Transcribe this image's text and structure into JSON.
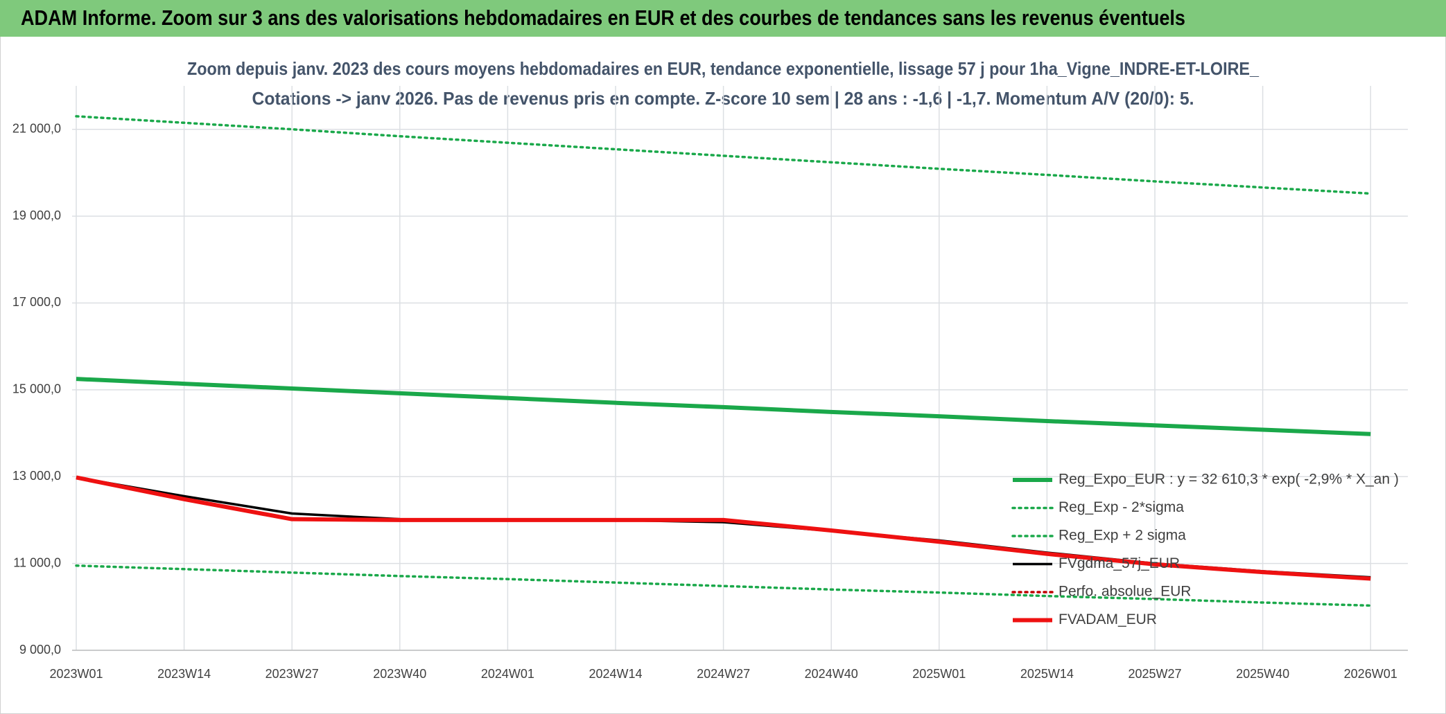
{
  "header": {
    "title": "ADAM Informe. Zoom sur 3 ans des valorisations hebdomadaires en EUR et des courbes de tendances sans les revenus éventuels"
  },
  "chart_data": {
    "type": "line",
    "title": [
      "Zoom depuis janv. 2023 des cours moyens hebdomadaires en EUR, tendance exponentielle, lissage 57 j pour 1ha_Vigne_INDRE-ET-LOIRE_",
      "Cotations -> janv 2026. Pas de revenus pris en compte. Z-score 10 sem | 28 ans : -1,6 | -1,7. Momentum A/V (20/0): 5."
    ],
    "categories": [
      "2023W01",
      "2023W14",
      "2023W27",
      "2023W40",
      "2024W01",
      "2024W14",
      "2024W27",
      "2024W40",
      "2025W01",
      "2025W14",
      "2025W27",
      "2025W40",
      "2026W01"
    ],
    "ylim": [
      9000,
      22000
    ],
    "yticks": [
      {
        "value": 9000,
        "label": "9 000,0"
      },
      {
        "value": 11000,
        "label": "11 000,0"
      },
      {
        "value": 13000,
        "label": "13 000,0"
      },
      {
        "value": 15000,
        "label": "15 000,0"
      },
      {
        "value": 17000,
        "label": "17 000,0"
      },
      {
        "value": 19000,
        "label": "19 000,0"
      },
      {
        "value": 21000,
        "label": "21 000,0"
      }
    ],
    "grid": true,
    "legend": "right",
    "series": [
      {
        "name": "Reg_Expo_EUR : y = 32 610,3 * exp( -2,9% *  X_an )",
        "color": "#1aa84a",
        "line_style": "thick",
        "values": [
          15250,
          15140,
          15030,
          14920,
          14810,
          14700,
          14600,
          14490,
          14390,
          14280,
          14180,
          14080,
          13980
        ]
      },
      {
        "name": "Reg_Exp - 2*sigma",
        "color": "#1aa84a",
        "line_style": "dotted",
        "values": [
          10950,
          10870,
          10790,
          10710,
          10640,
          10560,
          10480,
          10400,
          10330,
          10250,
          10180,
          10100,
          10030
        ]
      },
      {
        "name": "Reg_Exp + 2 sigma",
        "color": "#1aa84a",
        "line_style": "dotted",
        "values": [
          21300,
          21150,
          21000,
          20840,
          20690,
          20540,
          20390,
          20240,
          20090,
          19950,
          19800,
          19660,
          19520
        ]
      },
      {
        "name": "FVgdma_57j_EUR",
        "color": "#000000",
        "line_style": "thin",
        "values": [
          12980,
          12550,
          12150,
          12020,
          12000,
          12000,
          11950,
          11750,
          11530,
          11250,
          11000,
          10820,
          10680
        ]
      },
      {
        "name": "Perfo. absolue_EUR",
        "color": "#c00000",
        "line_style": "dotted",
        "values": [
          null,
          null,
          null,
          null,
          null,
          null,
          null,
          null,
          null,
          null,
          null,
          null,
          null
        ]
      },
      {
        "name": "FVADAM_EUR",
        "color": "#ee1111",
        "line_style": "thick",
        "values": [
          12980,
          12480,
          12020,
          12000,
          12000,
          12000,
          12000,
          11760,
          11500,
          11220,
          10980,
          10800,
          10650
        ]
      }
    ]
  }
}
